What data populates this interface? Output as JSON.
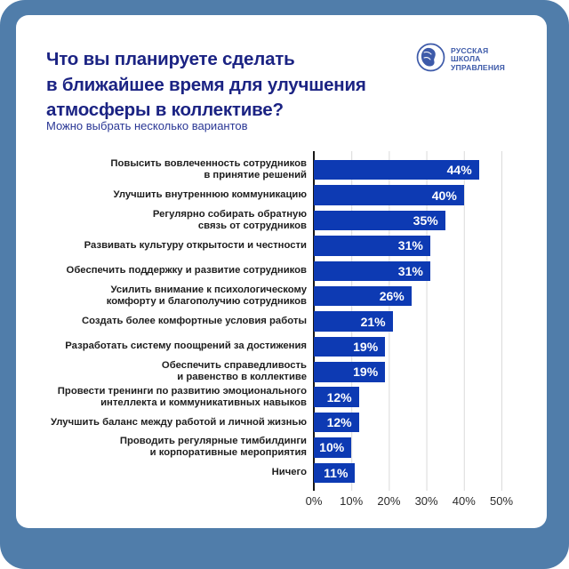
{
  "colors": {
    "frame": "#507daa",
    "bar": "#0d3ab3",
    "title": "#1b2383",
    "logo": "#3d5aa9",
    "gridline": "#d9d9d9"
  },
  "header": {
    "title_lines": [
      "Что вы планируете сделать",
      "в ближайшее время для улучшения",
      "атмосферы в коллективе?"
    ],
    "subtitle": "Можно выбрать несколько вариантов",
    "logo": {
      "icon": "rsu-head-profile-globe-icon",
      "lines": [
        "РУССКАЯ",
        "ШКОЛА",
        "УПРАВЛЕНИЯ"
      ]
    }
  },
  "chart_data": {
    "type": "bar",
    "orientation": "horizontal",
    "title": "Что вы планируете сделать в ближайшее время для улучшения атмосферы в коллективе?",
    "subtitle": "Можно выбрать несколько вариантов",
    "categories": [
      "Повысить вовлеченность сотрудников\nв принятие решений",
      "Улучшить внутреннюю коммуникацию",
      "Регулярно собирать обратную\nсвязь от сотрудников",
      "Развивать культуру открытости и честности",
      "Обеспечить поддержку и развитие сотрудников",
      "Усилить внимание к психологическому\nкомфорту и благополучию сотрудников",
      "Создать более комфортные условия работы",
      "Разработать систему поощрений за достижения",
      "Обеспечить справедливость\nи равенство в коллективе",
      "Провести тренинги по развитию эмоционального\nинтеллекта и коммуникативных навыков",
      "Улучшить баланс между работой и личной жизнью",
      "Проводить регулярные тимбилдинги\nи корпоративные мероприятия",
      "Ничего"
    ],
    "values": [
      44,
      40,
      35,
      31,
      31,
      26,
      21,
      19,
      19,
      12,
      12,
      10,
      11
    ],
    "value_labels": [
      "44%",
      "40%",
      "35%",
      "31%",
      "31%",
      "26%",
      "21%",
      "19%",
      "19%",
      "12%",
      "12%",
      "10%",
      "11%"
    ],
    "xlabel_ticks": [
      "0%",
      "10%",
      "20%",
      "30%",
      "40%",
      "50%"
    ],
    "xlim": [
      0,
      50
    ],
    "grid": true,
    "legend": false
  }
}
